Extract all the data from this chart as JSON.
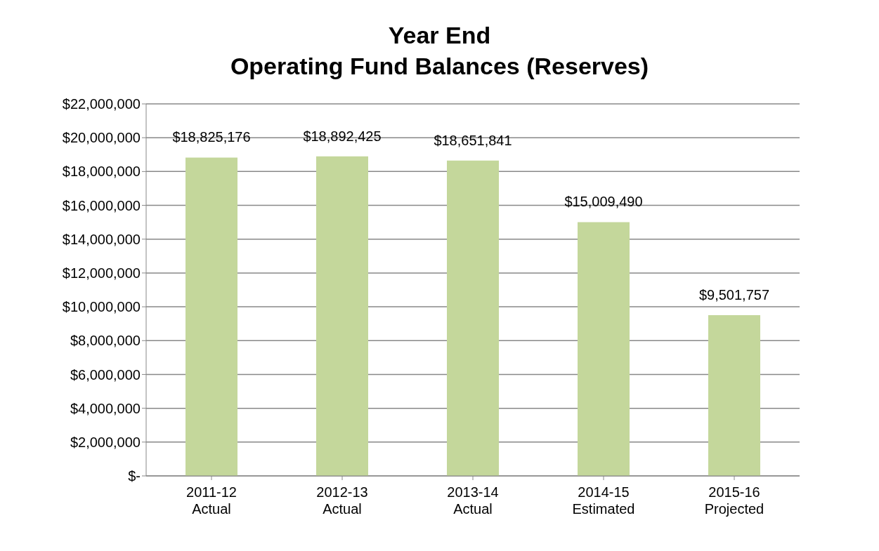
{
  "chart_data": {
    "type": "bar",
    "title": "Year End\nOperating Fund Balances (Reserves)",
    "categories": [
      "2011-12\nActual",
      "2012-13\nActual",
      "2013-14\nActual",
      "2014-15\nEstimated",
      "2015-16\nProjected"
    ],
    "values": [
      18825176,
      18892425,
      18651841,
      15009490,
      9501757
    ],
    "value_labels": [
      "$18,825,176",
      "$18,892,425",
      "$18,651,841",
      "$15,009,490",
      "$9,501,757"
    ],
    "color": "#c4d79b",
    "ylim": [
      0,
      22000000
    ],
    "yticks": [
      {
        "value": 0,
        "label": "$-"
      },
      {
        "value": 2000000,
        "label": "$2,000,000"
      },
      {
        "value": 4000000,
        "label": "$4,000,000"
      },
      {
        "value": 6000000,
        "label": "$6,000,000"
      },
      {
        "value": 8000000,
        "label": "$8,000,000"
      },
      {
        "value": 10000000,
        "label": "$10,000,000"
      },
      {
        "value": 12000000,
        "label": "$12,000,000"
      },
      {
        "value": 14000000,
        "label": "$14,000,000"
      },
      {
        "value": 16000000,
        "label": "$16,000,000"
      },
      {
        "value": 18000000,
        "label": "$18,000,000"
      },
      {
        "value": 20000000,
        "label": "$20,000,000"
      },
      {
        "value": 22000000,
        "label": "$22,000,000"
      }
    ],
    "grid": "y",
    "legend": false
  }
}
